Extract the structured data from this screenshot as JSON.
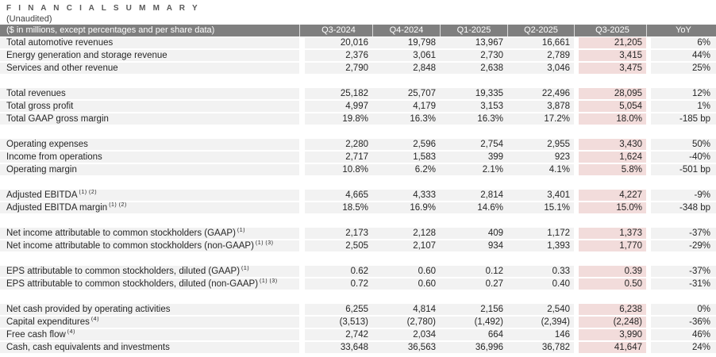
{
  "page": {
    "title": "F I N A N C I A L   S U M M A R Y",
    "subtitle": "(Unaudited)"
  },
  "colors": {
    "header_bg": "#7f7f7f",
    "header_text": "#ffffff",
    "row_bg": "#f2f2f2",
    "highlight_bg": "#f2dcdb",
    "body_text": "#262626",
    "title_text": "#595959"
  },
  "table": {
    "header": [
      "($ in millions, except percentages and per share data)",
      "Q3-2024",
      "Q4-2024",
      "Q1-2025",
      "Q2-2025",
      "Q3-2025",
      "YoY"
    ],
    "highlight_column": "Q3-2025",
    "rows": [
      {
        "label": "Total automotive revenues",
        "sup": "",
        "values": [
          "20,016",
          "19,798",
          "13,967",
          "16,661",
          "21,205",
          "6%"
        ]
      },
      {
        "label": "Energy generation and storage revenue",
        "sup": "",
        "values": [
          "2,376",
          "3,061",
          "2,730",
          "2,789",
          "3,415",
          "44%"
        ]
      },
      {
        "label": "Services and other revenue",
        "sup": "",
        "values": [
          "2,790",
          "2,848",
          "2,638",
          "3,046",
          "3,475",
          "25%"
        ]
      },
      {
        "spacer": true
      },
      {
        "label": "Total revenues",
        "sup": "",
        "values": [
          "25,182",
          "25,707",
          "19,335",
          "22,496",
          "28,095",
          "12%"
        ]
      },
      {
        "label": "Total gross profit",
        "sup": "",
        "values": [
          "4,997",
          "4,179",
          "3,153",
          "3,878",
          "5,054",
          "1%"
        ]
      },
      {
        "label": "Total GAAP gross margin",
        "sup": "",
        "values": [
          "19.8%",
          "16.3%",
          "16.3%",
          "17.2%",
          "18.0%",
          "-185 bp"
        ]
      },
      {
        "spacer": true
      },
      {
        "label": "Operating expenses",
        "sup": "",
        "values": [
          "2,280",
          "2,596",
          "2,754",
          "2,955",
          "3,430",
          "50%"
        ]
      },
      {
        "label": "Income from operations",
        "sup": "",
        "values": [
          "2,717",
          "1,583",
          "399",
          "923",
          "1,624",
          "-40%"
        ]
      },
      {
        "label": "Operating margin",
        "sup": "",
        "values": [
          "10.8%",
          "6.2%",
          "2.1%",
          "4.1%",
          "5.8%",
          "-501 bp"
        ]
      },
      {
        "spacer": true
      },
      {
        "label": "Adjusted EBITDA",
        "sup": "(1) (2)",
        "values": [
          "4,665",
          "4,333",
          "2,814",
          "3,401",
          "4,227",
          "-9%"
        ]
      },
      {
        "label": "Adjusted EBITDA margin",
        "sup": "(1) (2)",
        "values": [
          "18.5%",
          "16.9%",
          "14.6%",
          "15.1%",
          "15.0%",
          "-348 bp"
        ]
      },
      {
        "spacer": true
      },
      {
        "label": "Net income attributable to common stockholders (GAAP)",
        "sup": "(1)",
        "values": [
          "2,173",
          "2,128",
          "409",
          "1,172",
          "1,373",
          "-37%"
        ]
      },
      {
        "label": "Net income attributable to common stockholders (non-GAAP)",
        "sup": "(1) (3)",
        "values": [
          "2,505",
          "2,107",
          "934",
          "1,393",
          "1,770",
          "-29%"
        ]
      },
      {
        "spacer": true
      },
      {
        "label": "EPS attributable to common stockholders, diluted (GAAP)",
        "sup": "(1)",
        "values": [
          "0.62",
          "0.60",
          "0.12",
          "0.33",
          "0.39",
          "-37%"
        ]
      },
      {
        "label": "EPS attributable to common stockholders, diluted (non-GAAP)",
        "sup": "(1) (3)",
        "values": [
          "0.72",
          "0.60",
          "0.27",
          "0.40",
          "0.50",
          "-31%"
        ]
      },
      {
        "spacer": true
      },
      {
        "label": "Net cash provided by operating activities",
        "sup": "",
        "values": [
          "6,255",
          "4,814",
          "2,156",
          "2,540",
          "6,238",
          "0%"
        ]
      },
      {
        "label": "Capital expenditures",
        "sup": "(4)",
        "values": [
          "(3,513)",
          "(2,780)",
          "(1,492)",
          "(2,394)",
          "(2,248)",
          "-36%"
        ]
      },
      {
        "label": "Free cash flow",
        "sup": "(4)",
        "values": [
          "2,742",
          "2,034",
          "664",
          "146",
          "3,990",
          "46%"
        ]
      },
      {
        "label": "Cash, cash equivalents and investments",
        "sup": "",
        "values": [
          "33,648",
          "36,563",
          "36,996",
          "36,782",
          "41,647",
          "24%"
        ]
      }
    ]
  }
}
